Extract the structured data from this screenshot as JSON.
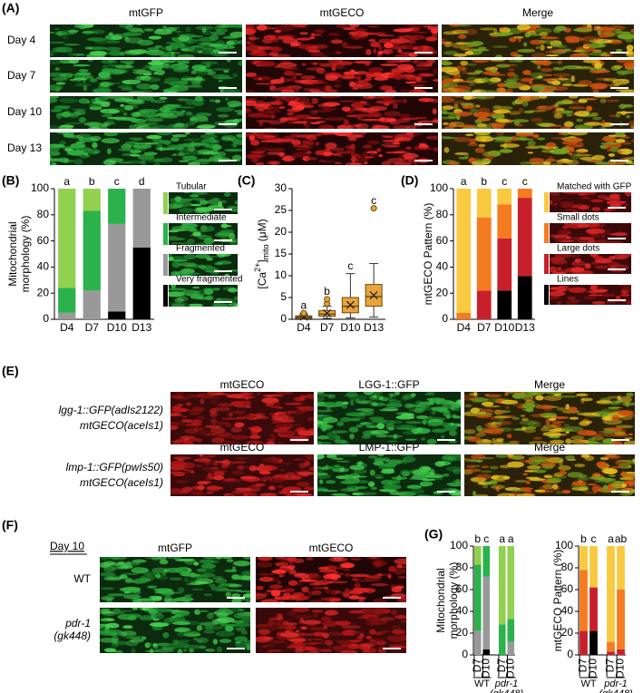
{
  "panels": {
    "A": {
      "label": "(A)",
      "columns": [
        "mtGFP",
        "mtGECO",
        "Merge"
      ],
      "rows": [
        "Day 4",
        "Day 7",
        "Day 10",
        "Day 13"
      ]
    },
    "B": {
      "label": "(B)"
    },
    "C": {
      "label": "(C)"
    },
    "D": {
      "label": "(D)"
    },
    "E": {
      "label": "(E)",
      "rows": [
        {
          "genotype": [
            "lgg-1::GFP(adIs2122)",
            "mtGECO(aceIs1)"
          ],
          "columns": [
            "mtGECO",
            "LGG-1::GFP",
            "Merge"
          ]
        },
        {
          "genotype": [
            "lmp-1::GFP(pwIs50)",
            "mtGECO(aceIs1)"
          ],
          "columns": [
            "mtGECO",
            "LMP-1::GFP",
            "Merge"
          ]
        }
      ]
    },
    "F": {
      "label": "(F)",
      "day": "Day 10",
      "columns": [
        "mtGFP",
        "mtGECO"
      ],
      "rows": [
        [
          "WT"
        ],
        [
          "pdr-1",
          "(gk448)"
        ]
      ]
    },
    "G": {
      "label": "(G)"
    }
  },
  "chart_data": [
    {
      "type": "stacked_bar",
      "ylabel": [
        "Mitochondrial",
        "morphology (%)"
      ],
      "categories": [
        "D4",
        "D7",
        "D10",
        "D13"
      ],
      "annotations": [
        "a",
        "b",
        "c",
        "d"
      ],
      "ylim": [
        0,
        100
      ],
      "yticks": [
        0,
        20,
        40,
        60,
        80,
        100
      ],
      "series": [
        {
          "name": "Very fragmented",
          "color": "#000000",
          "values": [
            0,
            0,
            6,
            55
          ]
        },
        {
          "name": "Fragmented",
          "color": "#999999",
          "values": [
            5,
            22,
            67,
            45
          ]
        },
        {
          "name": "Intermediate",
          "color": "#2bb24c",
          "values": [
            19,
            61,
            27,
            0
          ]
        },
        {
          "name": "Tubular",
          "color": "#92d050",
          "values": [
            76,
            17,
            0,
            0
          ]
        }
      ]
    },
    {
      "type": "box",
      "ylabel": {
        "pre": "[Ca",
        "sup": "2+",
        "post": "]",
        "sub": "mito",
        "unit": "(μM)"
      },
      "categories": [
        "D4",
        "D7",
        "D10",
        "D13"
      ],
      "annotations": [
        "a",
        "b",
        "c",
        "c"
      ],
      "ylim": [
        0,
        30
      ],
      "yticks": [
        0,
        5,
        10,
        15,
        20,
        25,
        30
      ],
      "color": "#e8a33c",
      "boxes": [
        {
          "min": 0,
          "q1": 0.2,
          "median": 0.5,
          "q3": 0.8,
          "max": 1.0,
          "mean": 0.6,
          "outliers": [
            1.4
          ]
        },
        {
          "min": 0.2,
          "q1": 0.7,
          "median": 1.2,
          "q3": 2.0,
          "max": 3.0,
          "mean": 1.4,
          "outliers": [
            3.6,
            4.6
          ]
        },
        {
          "min": 0.3,
          "q1": 1.5,
          "median": 3.0,
          "q3": 5.0,
          "max": 10.5,
          "mean": 3.3,
          "outliers": []
        },
        {
          "min": 0.5,
          "q1": 3.0,
          "median": 5.2,
          "q3": 8.0,
          "max": 12.8,
          "mean": 5.5,
          "outliers": [
            25.5
          ]
        }
      ]
    },
    {
      "type": "stacked_bar",
      "ylabel": [
        "mtGECO Pattern (%)"
      ],
      "categories": [
        "D4",
        "D7",
        "D10",
        "D13"
      ],
      "annotations": [
        "a",
        "b",
        "c",
        "c"
      ],
      "ylim": [
        0,
        100
      ],
      "yticks": [
        0,
        20,
        40,
        60,
        80,
        100
      ],
      "series": [
        {
          "name": "Lines",
          "color": "#000000",
          "values": [
            0,
            0,
            22,
            33
          ]
        },
        {
          "name": "Large dots",
          "color": "#c8202a",
          "values": [
            0,
            22,
            40,
            60
          ]
        },
        {
          "name": "Small dots",
          "color": "#f47b20",
          "values": [
            5,
            56,
            26,
            7
          ]
        },
        {
          "name": "Matched with GFP",
          "color": "#f9c940",
          "values": [
            95,
            22,
            12,
            0
          ]
        }
      ]
    },
    {
      "type": "stacked_bar",
      "ylabel": [
        "Mitochondrial",
        "morphology (%)"
      ],
      "categories": [
        "D7",
        "D10",
        "D7",
        "D10"
      ],
      "groups": [
        [
          "WT"
        ],
        [
          "pdr-1",
          "(gk448)"
        ]
      ],
      "annotations": [
        "b",
        "c",
        "a",
        "a"
      ],
      "ylim": [
        0,
        100
      ],
      "yticks": [
        0,
        20,
        40,
        60,
        80,
        100
      ],
      "series": [
        {
          "color": "#000000",
          "values": [
            0,
            5,
            0,
            0
          ]
        },
        {
          "color": "#999999",
          "values": [
            22,
            67,
            0,
            12
          ]
        },
        {
          "color": "#2bb24c",
          "values": [
            61,
            28,
            28,
            21
          ]
        },
        {
          "color": "#92d050",
          "values": [
            17,
            0,
            72,
            67
          ]
        }
      ]
    },
    {
      "type": "stacked_bar",
      "ylabel": [
        "mtGECO Pattern (%)"
      ],
      "categories": [
        "D7",
        "D10",
        "D7",
        "D10"
      ],
      "groups": [
        [
          "WT"
        ],
        [
          "pdr-1",
          "(gk448)"
        ]
      ],
      "annotations": [
        "b",
        "c",
        "a",
        "ab"
      ],
      "ylim": [
        0,
        100
      ],
      "yticks": [
        0,
        20,
        40,
        60,
        80,
        100
      ],
      "series": [
        {
          "color": "#000000",
          "values": [
            0,
            22,
            0,
            0
          ]
        },
        {
          "color": "#c8202a",
          "values": [
            22,
            40,
            3,
            5
          ]
        },
        {
          "color": "#f47b20",
          "values": [
            56,
            0,
            9,
            55
          ]
        },
        {
          "color": "#f9c940",
          "values": [
            22,
            38,
            88,
            40
          ]
        }
      ]
    }
  ]
}
